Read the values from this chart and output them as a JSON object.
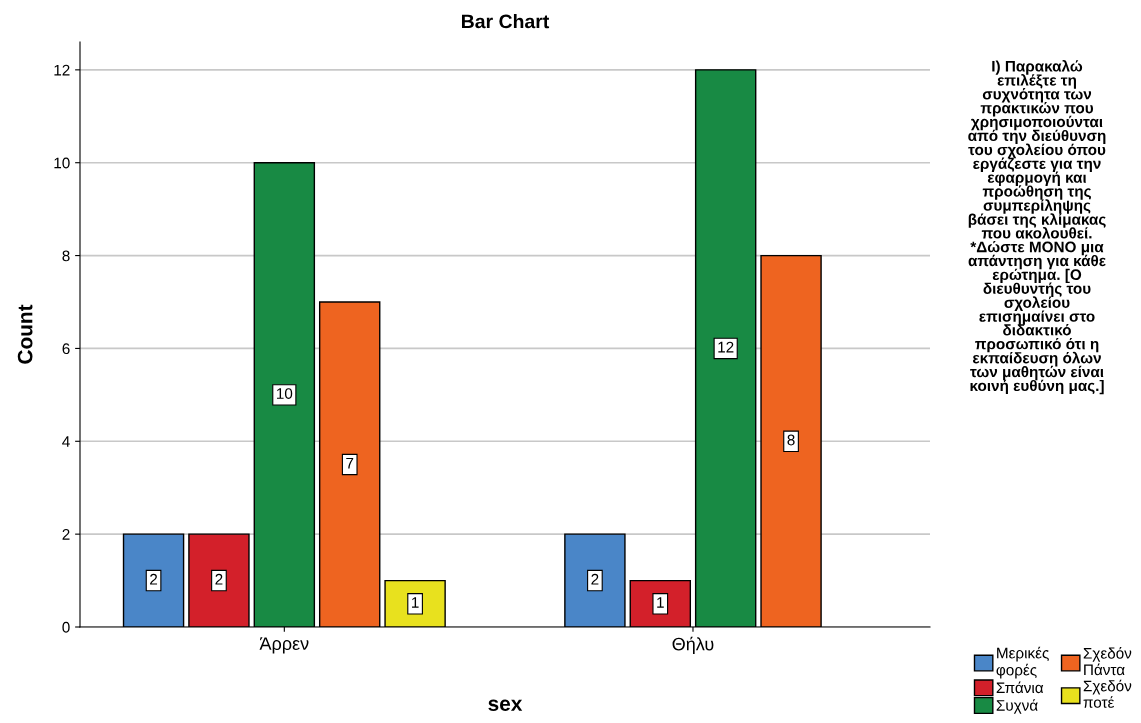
{
  "chart_data": {
    "type": "bar",
    "title": "Bar Chart",
    "xlabel": "sex",
    "ylabel": "Count",
    "legend_title": "I) Παρακαλώ\nεπιλέξτε τη\nσυχνότητα των\nπρακτικών που\nχρησιμοποιούνται\nαπό την διεύθυνση\nτου σχολείου όπου\nεργάζεστε για την\nεφαρμογή και\nπροώθηση της\nσυμπερίληψης\nβάσει της κλίμακας\nπου ακολουθεί.\n*Δώστε ΜΟΝΟ μια\nαπάντηση για κάθε\nερώτημα. [Ο\nδιευθυντής του\nσχολείου\nεπισημαίνει στο\nδιδακτικό\nπροσωπικό ότι η\nεκπαίδευση όλων\nτων μαθητών είναι\nκοινή ευθύνη μας.]",
    "categories": [
      "Άρρεν",
      "Θήλυ"
    ],
    "series": [
      {
        "name": "Μερικές\nφορές",
        "color": "#4a86c8",
        "values": [
          2,
          2
        ]
      },
      {
        "name": "Σπάνια",
        "color": "#d3202a",
        "values": [
          2,
          1
        ]
      },
      {
        "name": "Συχνά",
        "color": "#188a44",
        "values": [
          10,
          12
        ]
      },
      {
        "name": "Σχεδόν\nΠάντα",
        "color": "#ee6420",
        "values": [
          7,
          8
        ]
      },
      {
        "name": "Σχεδόν\nποτέ",
        "color": "#e8e11e",
        "values": [
          1,
          null
        ]
      }
    ],
    "ylim": [
      0,
      12.6
    ],
    "yticks": [
      0,
      2,
      4,
      6,
      8,
      10,
      12
    ],
    "grid": "y",
    "legend": "bottom right",
    "data_labels": true
  }
}
